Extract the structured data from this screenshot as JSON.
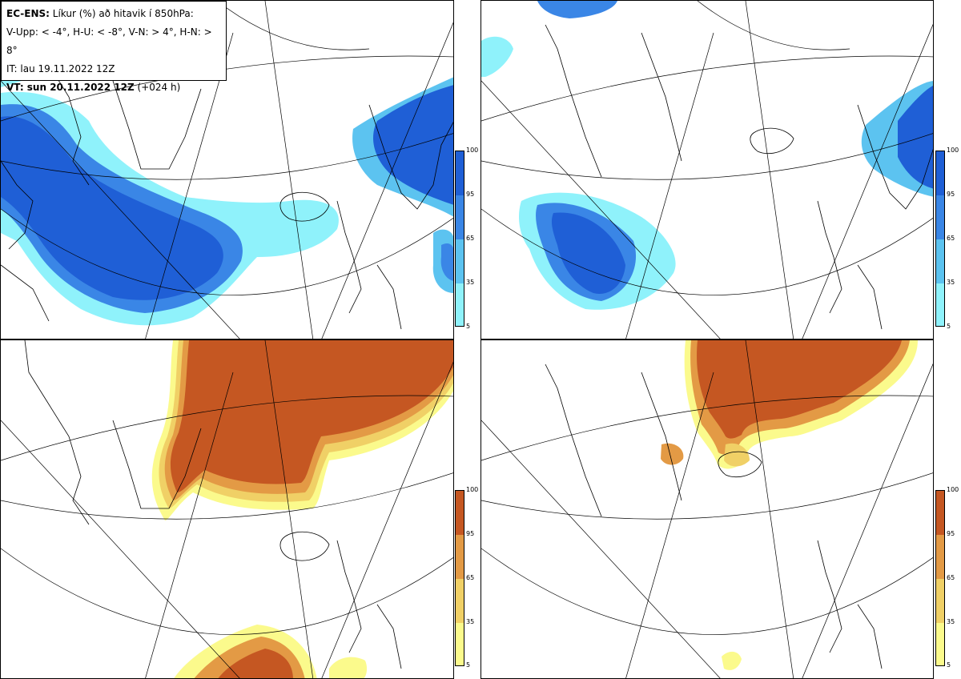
{
  "header": {
    "line1_bold": "EC-ENS:",
    "line1_rest": "Líkur (%) að hitavik í 850hPa:",
    "line2": "V-Upp: < -4°, H-U: < -8°, V-N: > 4°, H-N: > 8°",
    "line3": "IT: lau 19.11.2022 12Z",
    "line4_bold": "VT: sun 20.11.2022 12Z",
    "line4_rest": "(+024 h)"
  },
  "panels": [
    {
      "id": "V-Upp",
      "field": "cold anomaly < -4°",
      "colormap": "blue"
    },
    {
      "id": "H-U",
      "field": "cold anomaly < -8°",
      "colormap": "blue"
    },
    {
      "id": "V-N",
      "field": "warm anomaly > 4°",
      "colormap": "orange"
    },
    {
      "id": "H-N",
      "field": "warm anomaly > 8°",
      "colormap": "orange"
    }
  ],
  "colorbar": {
    "ticks": [
      "100",
      "95",
      "65",
      "35",
      "5"
    ],
    "blue_colors": [
      "#1f5fd6",
      "#3a86e6",
      "#5cc3f0",
      "#8ff2fb"
    ],
    "orange_colors": [
      "#c55722",
      "#e39a45",
      "#f0d066",
      "#fbfa8c"
    ]
  }
}
